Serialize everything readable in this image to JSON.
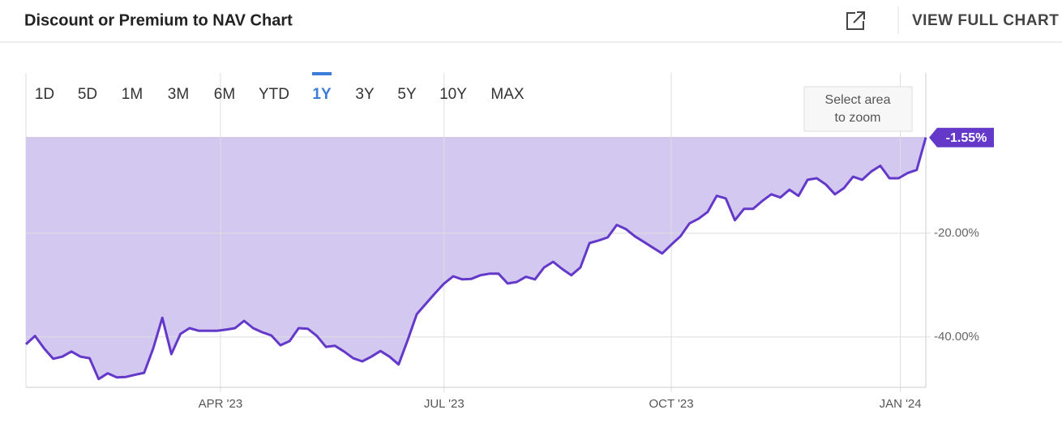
{
  "header": {
    "view_full_chart": "VIEW FULL CHART"
  },
  "ranges": [
    "1D",
    "5D",
    "1M",
    "3M",
    "6M",
    "YTD",
    "1Y",
    "3Y",
    "5Y",
    "10Y",
    "MAX"
  ],
  "selected_range": 6,
  "zoom_hint": [
    "Select area",
    "to zoom"
  ],
  "chart_data": {
    "type": "area",
    "title": "Discount or Premium to NAV Chart",
    "color": "#6439c9",
    "fill": "#d3c9f0",
    "grid": true,
    "xlim": [
      0,
      99
    ],
    "xticks": [
      {
        "value": 21.4,
        "label": "APR '23"
      },
      {
        "value": 46,
        "label": "JUL '23"
      },
      {
        "value": 71,
        "label": "OCT '23"
      },
      {
        "value": 96.2,
        "label": "JAN '24"
      }
    ],
    "ylim": [
      -49.7,
      10.9
    ],
    "yticks": [
      {
        "value": -20,
        "label": "-20.00%"
      },
      {
        "value": -40,
        "label": "-40.00%"
      }
    ],
    "values": [
      -41.4,
      -39.8,
      -42.2,
      -44.2,
      -43.8,
      -42.8,
      -43.8,
      -44.1,
      -48.1,
      -47.0,
      -47.8,
      -47.7,
      -47.3,
      -46.9,
      -42.2,
      -36.3,
      -43.3,
      -39.4,
      -38.3,
      -38.8,
      -38.8,
      -38.8,
      -38.6,
      -38.3,
      -36.9,
      -38.3,
      -39.1,
      -39.7,
      -41.6,
      -40.8,
      -38.3,
      -38.4,
      -39.8,
      -41.9,
      -41.7,
      -42.8,
      -44.1,
      -44.7,
      -43.8,
      -42.7,
      -43.8,
      -45.3,
      -40.6,
      -35.6,
      -33.6,
      -31.6,
      -29.7,
      -28.3,
      -28.9,
      -28.8,
      -28.1,
      -27.8,
      -27.8,
      -29.7,
      -29.4,
      -28.4,
      -28.9,
      -26.6,
      -25.5,
      -26.9,
      -28.1,
      -26.6,
      -21.9,
      -21.4,
      -20.8,
      -18.4,
      -19.2,
      -20.6,
      -21.7,
      -22.8,
      -23.9,
      -22.2,
      -20.6,
      -18.1,
      -17.2,
      -15.9,
      -12.8,
      -13.3,
      -17.5,
      -15.3,
      -15.3,
      -13.8,
      -12.5,
      -13.1,
      -11.6,
      -12.8,
      -9.7,
      -9.4,
      -10.6,
      -12.5,
      -11.3,
      -9.1,
      -9.7,
      -8.1,
      -7.0,
      -9.4,
      -9.4,
      -8.4,
      -7.8,
      -1.55
    ],
    "value_labels": [
      null,
      null,
      null,
      null,
      null,
      null,
      null,
      null,
      null,
      null,
      null,
      null,
      null,
      null,
      null,
      null,
      null,
      null,
      null,
      null,
      null,
      null,
      null,
      null,
      null,
      null,
      null,
      null,
      null,
      null,
      null,
      null,
      null,
      null,
      null,
      null,
      null,
      null,
      null,
      null,
      null,
      null,
      null,
      null,
      null,
      null,
      null,
      null,
      null,
      null,
      null,
      null,
      null,
      null,
      null,
      null,
      null,
      null,
      null,
      null,
      null,
      null,
      null,
      null,
      null,
      null,
      null,
      null,
      null,
      null,
      null,
      null,
      null,
      null,
      null,
      null,
      null,
      null,
      null,
      null,
      null,
      null,
      null,
      null,
      null,
      null,
      null,
      null,
      null,
      null,
      null,
      null,
      null,
      null,
      null,
      null,
      null,
      null,
      null,
      "-1.55%"
    ]
  }
}
